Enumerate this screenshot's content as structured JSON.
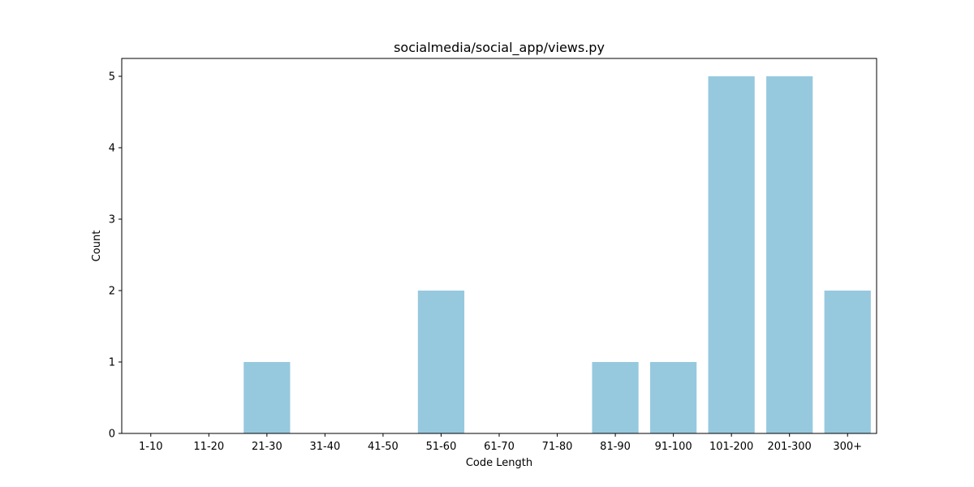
{
  "chart_data": {
    "type": "bar",
    "title": "socialmedia/social_app/views.py",
    "xlabel": "Code Length",
    "ylabel": "Count",
    "categories": [
      "1-10",
      "11-20",
      "21-30",
      "31-40",
      "41-50",
      "51-60",
      "61-70",
      "71-80",
      "81-90",
      "91-100",
      "101-200",
      "201-300",
      "300+"
    ],
    "values": [
      0,
      0,
      1,
      0,
      0,
      2,
      0,
      0,
      1,
      1,
      5,
      5,
      2
    ],
    "ylim": [
      0,
      5.25
    ],
    "yticks": [
      0,
      1,
      2,
      3,
      4,
      5
    ],
    "grid": false,
    "bar_color": "#96c9de"
  }
}
